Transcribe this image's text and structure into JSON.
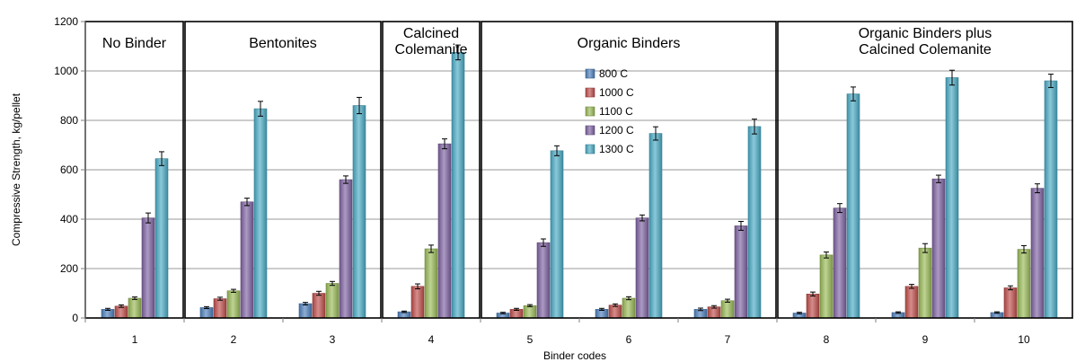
{
  "chart_data": {
    "type": "bar",
    "title": "",
    "xlabel": "Binder codes",
    "ylabel": "Compressive Strength, kg/pellet",
    "ylim": [
      0,
      1200
    ],
    "yticks": [
      0,
      200,
      400,
      600,
      800,
      1000,
      1200
    ],
    "categories": [
      "1",
      "2",
      "3",
      "4",
      "5",
      "6",
      "7",
      "8",
      "9",
      "10"
    ],
    "legend_position": "center (inside Organic Binders panel)",
    "grid": true,
    "series": [
      {
        "name": "800 C",
        "color": "#4F81BD",
        "values": [
          35,
          42,
          58,
          25,
          20,
          35,
          35,
          20,
          22,
          22
        ],
        "errors": [
          4,
          4,
          5,
          3,
          3,
          4,
          5,
          3,
          3,
          3
        ]
      },
      {
        "name": "1000 C",
        "color": "#C0504D",
        "values": [
          48,
          78,
          100,
          128,
          35,
          52,
          45,
          97,
          128,
          122
        ],
        "errors": [
          5,
          6,
          8,
          10,
          4,
          5,
          5,
          8,
          8,
          8
        ]
      },
      {
        "name": "1100 C",
        "color": "#9BBB59",
        "values": [
          80,
          110,
          140,
          280,
          50,
          80,
          70,
          255,
          283,
          278
        ],
        "errors": [
          5,
          6,
          8,
          15,
          4,
          6,
          6,
          12,
          18,
          15
        ]
      },
      {
        "name": "1200 C",
        "color": "#8064A2",
        "values": [
          405,
          470,
          560,
          705,
          305,
          405,
          373,
          445,
          563,
          525
        ],
        "errors": [
          20,
          15,
          15,
          20,
          15,
          12,
          18,
          18,
          15,
          18
        ]
      },
      {
        "name": "1300 C",
        "color": "#4BACC6",
        "values": [
          645,
          847,
          860,
          1075,
          677,
          747,
          775,
          907,
          973,
          960
        ],
        "errors": [
          28,
          30,
          33,
          30,
          20,
          27,
          30,
          28,
          30,
          27
        ]
      }
    ],
    "groups": [
      {
        "label_lines": [
          "No Binder"
        ],
        "from": 1,
        "to": 1
      },
      {
        "label_lines": [
          "Bentonites"
        ],
        "from": 2,
        "to": 3
      },
      {
        "label_lines": [
          "Calcined",
          "Colemanite"
        ],
        "from": 4,
        "to": 4
      },
      {
        "label_lines": [
          "Organic Binders"
        ],
        "from": 5,
        "to": 7
      },
      {
        "label_lines": [
          "Organic Binders plus",
          "Calcined Colemanite"
        ],
        "from": 8,
        "to": 10
      }
    ]
  }
}
